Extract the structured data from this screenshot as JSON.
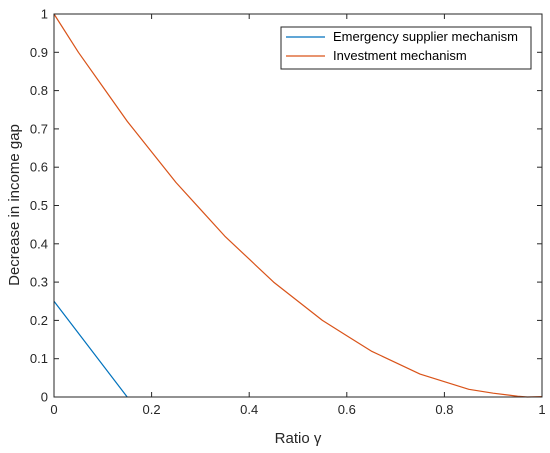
{
  "chart_data": {
    "type": "line",
    "title": "",
    "xlabel": "Ratio γ",
    "ylabel": "Decrease in income gap",
    "xlim": [
      0,
      1
    ],
    "ylim": [
      0,
      1
    ],
    "x_ticks": [
      0,
      0.2,
      0.4,
      0.6,
      0.8,
      1
    ],
    "x_tick_labels": [
      "0",
      "0.2",
      "0.4",
      "0.6",
      "0.8",
      "1"
    ],
    "y_ticks": [
      0,
      0.1,
      0.2,
      0.3,
      0.4,
      0.5,
      0.6,
      0.7,
      0.8,
      0.9,
      1
    ],
    "y_tick_labels": [
      "0",
      "0.1",
      "0.2",
      "0.3",
      "0.4",
      "0.5",
      "0.6",
      "0.7",
      "0.8",
      "0.9",
      "1"
    ],
    "grid": false,
    "box": true,
    "legend_position": "top-right",
    "series": [
      {
        "name": "Emergency supplier mechanism",
        "color": "#0072BD",
        "x": [
          0,
          0.15
        ],
        "y": [
          0.25,
          0
        ]
      },
      {
        "name": "Investment mechanism",
        "color": "#D95319",
        "x": [
          0,
          0.05,
          0.1,
          0.15,
          0.2,
          0.25,
          0.3,
          0.35,
          0.4,
          0.45,
          0.5,
          0.55,
          0.6,
          0.65,
          0.7,
          0.75,
          0.8,
          0.85,
          0.9,
          0.95,
          0.97,
          1
        ],
        "y": [
          1,
          0.9,
          0.81,
          0.72,
          0.64,
          0.56,
          0.49,
          0.42,
          0.36,
          0.3,
          0.25,
          0.2,
          0.16,
          0.12,
          0.09,
          0.06,
          0.04,
          0.02,
          0.01,
          0.002,
          0,
          0.001
        ]
      }
    ]
  }
}
